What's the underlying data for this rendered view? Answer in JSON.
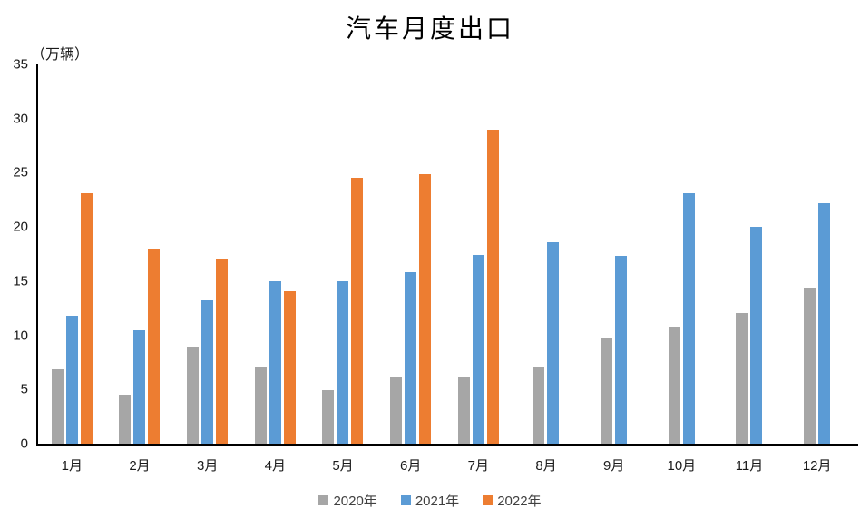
{
  "chart_data": {
    "type": "bar",
    "title": "汽车月度出口",
    "unit_label": "（万辆）",
    "categories": [
      "1月",
      "2月",
      "3月",
      "4月",
      "5月",
      "6月",
      "7月",
      "8月",
      "9月",
      "10月",
      "11月",
      "12月"
    ],
    "series": [
      {
        "name": "2020年",
        "color": "#A6A6A6",
        "values": [
          6.9,
          4.5,
          9.0,
          7.0,
          4.9,
          6.2,
          6.2,
          7.1,
          9.8,
          10.8,
          12.1,
          14.4
        ]
      },
      {
        "name": "2021年",
        "color": "#5B9BD5",
        "values": [
          11.8,
          10.5,
          13.2,
          15.0,
          15.0,
          15.8,
          17.4,
          18.6,
          17.3,
          23.1,
          20.0,
          22.2
        ]
      },
      {
        "name": "2022年",
        "color": "#ED7D31",
        "values": [
          23.1,
          18.0,
          17.0,
          14.1,
          24.5,
          24.9,
          29.0,
          null,
          null,
          null,
          null,
          null
        ]
      }
    ],
    "ylim": [
      0,
      35
    ],
    "ytick_step": 5,
    "grid": false,
    "legend_position": "bottom",
    "axis_color": "#000000"
  }
}
